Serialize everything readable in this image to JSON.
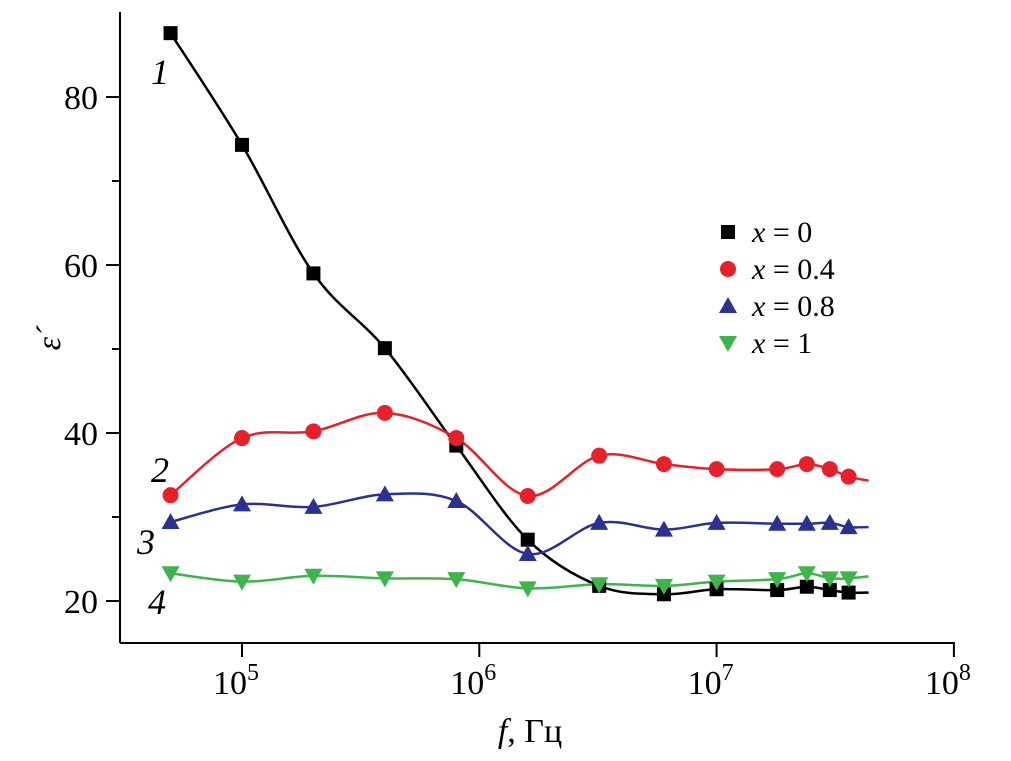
{
  "chart_data": {
    "type": "line",
    "title": "",
    "xlabel_var": "f",
    "xlabel_unit": ", Гц",
    "ylabel": "ε´",
    "xscale": "log",
    "xlim_log10": [
      4.486,
      8.0
    ],
    "ylim": [
      15,
      90
    ],
    "yticks": [
      20,
      40,
      60,
      80
    ],
    "yminor": [
      30,
      50,
      70
    ],
    "xticks": [
      {
        "base": "10",
        "exp": "5",
        "log": 5
      },
      {
        "base": "10",
        "exp": "6",
        "log": 6
      },
      {
        "base": "10",
        "exp": "7",
        "log": 7
      },
      {
        "base": "10",
        "exp": "8",
        "log": 8
      }
    ],
    "grid": false,
    "legend_position": "right",
    "x": [
      50000.0,
      100000.0,
      200000.0,
      400000.0,
      800000.0,
      1600000.0,
      3200000.0,
      6000000.0,
      10000000.0,
      18000000.0,
      24000000.0,
      30000000.0,
      36000000.0
    ],
    "series": [
      {
        "name": "x = 0",
        "curve_label": "1",
        "color": "#000000",
        "marker": "square",
        "values": [
          87.6,
          74.3,
          59.0,
          50.1,
          38.5,
          27.3,
          21.8,
          20.8,
          21.4,
          21.3,
          21.7,
          21.3,
          21.0
        ]
      },
      {
        "name": "x = 0.4",
        "curve_label": "2",
        "color": "#e8202a",
        "marker": "circle",
        "values": [
          32.6,
          39.4,
          40.2,
          42.4,
          39.4,
          32.5,
          37.3,
          36.3,
          35.7,
          35.7,
          36.3,
          35.7,
          34.8
        ]
      },
      {
        "name": "x = 0.8",
        "curve_label": "3",
        "color": "#2b3190",
        "marker": "triangle-up",
        "values": [
          29.4,
          31.5,
          31.2,
          32.7,
          31.9,
          25.6,
          29.3,
          28.5,
          29.3,
          29.2,
          29.2,
          29.3,
          28.8
        ]
      },
      {
        "name": "x = 1",
        "curve_label": "4",
        "color": "#3cb54a",
        "marker": "triangle-down",
        "values": [
          23.3,
          22.3,
          23.0,
          22.7,
          22.6,
          21.5,
          22.0,
          21.8,
          22.3,
          22.6,
          23.3,
          22.7,
          22.7
        ]
      }
    ]
  }
}
